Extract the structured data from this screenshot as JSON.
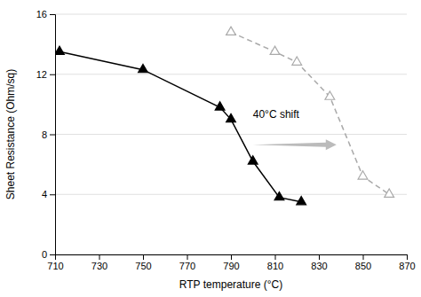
{
  "chart_data": {
    "type": "line",
    "x_label": "RTP temperature (°C)",
    "y_label": "Sheet Resistance (Ohm/sq)",
    "series": [
      {
        "x": [
          712,
          750,
          785,
          790,
          800,
          812,
          822
        ],
        "values": [
          13.5,
          12.3,
          9.8,
          9.0,
          6.2,
          3.8,
          3.5
        ],
        "color": "#000000",
        "line_style": "solid",
        "marker": "triangle"
      },
      {
        "x": [
          790,
          810,
          820,
          835,
          850,
          862
        ],
        "values": [
          14.8,
          13.5,
          12.8,
          10.5,
          5.2,
          4.0
        ],
        "color": "#aaaaaa",
        "line_style": "dashed",
        "marker": "triangle-open"
      }
    ],
    "xlim": [
      710,
      870
    ],
    "ylim": [
      0,
      16
    ],
    "xticks": [
      710,
      730,
      750,
      770,
      790,
      810,
      830,
      850,
      870
    ],
    "yticks": [
      0,
      4,
      8,
      12,
      16
    ],
    "grid": "y",
    "annotations": [
      {
        "text": "40°C shift",
        "x": 800,
        "y": 8.9
      }
    ],
    "arrow": {
      "x_start": 800,
      "x_end": 838,
      "y": 7.3,
      "color": "#bbbbbb"
    }
  }
}
